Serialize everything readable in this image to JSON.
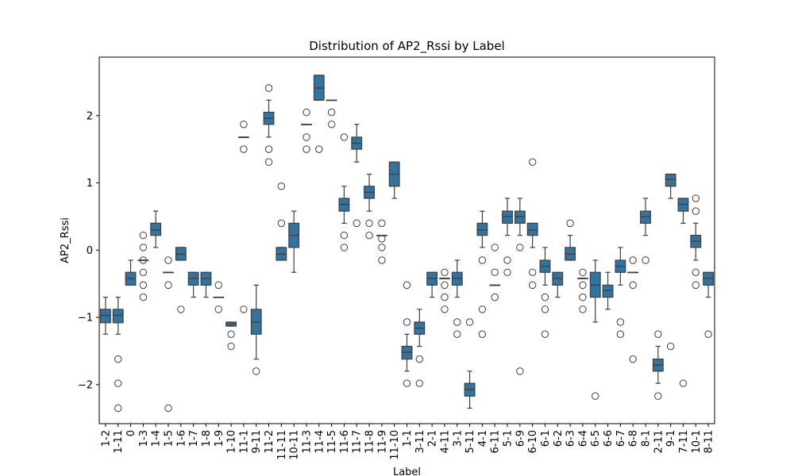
{
  "chart_data": {
    "type": "box",
    "title": "Distribution of AP2_Rssi by Label",
    "xlabel": "Label",
    "ylabel": "AP2_Rssi",
    "ylim": [
      -2.58,
      2.87
    ],
    "yticks": [
      -2,
      -1,
      0,
      1,
      2
    ],
    "box_color": "#3274a1",
    "edge_color": "#3f3f3f",
    "grid": false,
    "categories": [
      "1-2",
      "1-11",
      "0",
      "1-3",
      "1-4",
      "1-5",
      "1-6",
      "1-7",
      "1-8",
      "1-9",
      "1-10",
      "11-1",
      "9-11",
      "11-2",
      "11-11",
      "10-11",
      "11-3",
      "11-4",
      "11-5",
      "11-6",
      "11-7",
      "11-8",
      "11-9",
      "11-10",
      "1-1",
      "3-11",
      "2-1",
      "4-11",
      "3-1",
      "5-11",
      "4-1",
      "6-11",
      "5-1",
      "6-9",
      "6-10",
      "6-1",
      "6-2",
      "6-3",
      "6-4",
      "6-5",
      "6-6",
      "6-7",
      "6-8",
      "8-1",
      "2-11",
      "9-1",
      "7-11",
      "10-1",
      "8-11"
    ],
    "boxes": [
      {
        "label": "1-2",
        "whislo": -1.25,
        "q1": -1.08,
        "med": -0.97,
        "q3": -0.88,
        "whishi": -0.7,
        "fliers": []
      },
      {
        "label": "1-11",
        "whislo": -1.25,
        "q1": -1.08,
        "med": -0.97,
        "q3": -0.88,
        "whishi": -0.7,
        "fliers": [
          -1.62,
          -1.98,
          -2.35
        ]
      },
      {
        "label": "0",
        "whislo": -0.52,
        "q1": -0.52,
        "med": -0.42,
        "q3": -0.33,
        "whishi": -0.15,
        "fliers": []
      },
      {
        "label": "1-3",
        "whislo": -0.15,
        "q1": -0.15,
        "med": -0.15,
        "q3": -0.15,
        "whishi": -0.15,
        "fliers": [
          0.22,
          0.04,
          -0.15,
          -0.33,
          -0.52,
          -0.7
        ]
      },
      {
        "label": "1-4",
        "whislo": 0.04,
        "q1": 0.22,
        "med": 0.3,
        "q3": 0.4,
        "whishi": 0.58,
        "fliers": []
      },
      {
        "label": "1-5",
        "whislo": -0.33,
        "q1": -0.33,
        "med": -0.33,
        "q3": -0.33,
        "whishi": -0.33,
        "fliers": [
          -0.15,
          -0.52,
          -2.35
        ]
      },
      {
        "label": "1-6",
        "whislo": -0.15,
        "q1": -0.15,
        "med": -0.06,
        "q3": 0.04,
        "whishi": 0.04,
        "fliers": [
          -0.88
        ]
      },
      {
        "label": "1-7",
        "whislo": -0.7,
        "q1": -0.52,
        "med": -0.42,
        "q3": -0.33,
        "whishi": -0.33,
        "fliers": []
      },
      {
        "label": "1-8",
        "whislo": -0.7,
        "q1": -0.52,
        "med": -0.42,
        "q3": -0.33,
        "whishi": -0.33,
        "fliers": []
      },
      {
        "label": "1-9",
        "whislo": -0.7,
        "q1": -0.7,
        "med": -0.7,
        "q3": -0.7,
        "whishi": -0.7,
        "fliers": [
          -0.52,
          -0.88
        ]
      },
      {
        "label": "1-10",
        "whislo": -1.13,
        "q1": -1.13,
        "med": -1.1,
        "q3": -1.07,
        "whishi": -1.07,
        "fliers": [
          -1.25,
          -1.43
        ]
      },
      {
        "label": "11-1",
        "whislo": 1.68,
        "q1": 1.68,
        "med": 1.68,
        "q3": 1.68,
        "whishi": 1.68,
        "fliers": [
          1.87,
          1.5,
          -0.88
        ]
      },
      {
        "label": "9-11",
        "whislo": -1.62,
        "q1": -1.25,
        "med": -1.07,
        "q3": -0.88,
        "whishi": -0.52,
        "fliers": [
          -1.8
        ]
      },
      {
        "label": "11-2",
        "whislo": 1.68,
        "q1": 1.87,
        "med": 1.96,
        "q3": 2.05,
        "whishi": 2.23,
        "fliers": [
          2.41,
          1.5,
          1.31
        ]
      },
      {
        "label": "11-11",
        "whislo": -0.15,
        "q1": -0.15,
        "med": -0.06,
        "q3": 0.04,
        "whishi": 0.04,
        "fliers": [
          0.95,
          0.4
        ]
      },
      {
        "label": "10-11",
        "whislo": -0.33,
        "q1": 0.04,
        "med": 0.22,
        "q3": 0.4,
        "whishi": 0.58,
        "fliers": []
      },
      {
        "label": "11-3",
        "whislo": 1.87,
        "q1": 1.87,
        "med": 1.87,
        "q3": 1.87,
        "whishi": 1.87,
        "fliers": [
          2.05,
          1.68,
          1.5
        ]
      },
      {
        "label": "11-4",
        "whislo": 2.23,
        "q1": 2.23,
        "med": 2.41,
        "q3": 2.6,
        "whishi": 2.6,
        "fliers": [
          1.5
        ]
      },
      {
        "label": "11-5",
        "whislo": 2.23,
        "q1": 2.23,
        "med": 2.23,
        "q3": 2.23,
        "whishi": 2.23,
        "fliers": [
          2.05,
          1.87
        ]
      },
      {
        "label": "11-6",
        "whislo": 0.4,
        "q1": 0.58,
        "med": 0.68,
        "q3": 0.77,
        "whishi": 0.95,
        "fliers": [
          1.68,
          0.22,
          0.04
        ]
      },
      {
        "label": "11-7",
        "whislo": 1.31,
        "q1": 1.5,
        "med": 1.59,
        "q3": 1.68,
        "whishi": 1.87,
        "fliers": [
          0.4
        ]
      },
      {
        "label": "11-8",
        "whislo": 0.58,
        "q1": 0.77,
        "med": 0.86,
        "q3": 0.95,
        "whishi": 1.13,
        "fliers": [
          0.4,
          0.22
        ]
      },
      {
        "label": "11-9",
        "whislo": 0.22,
        "q1": 0.22,
        "med": 0.22,
        "q3": 0.22,
        "whishi": 0.22,
        "fliers": [
          0.4,
          0.17,
          0.04,
          -0.15
        ]
      },
      {
        "label": "11-10",
        "whislo": 0.77,
        "q1": 0.95,
        "med": 1.13,
        "q3": 1.31,
        "whishi": 1.31,
        "fliers": []
      },
      {
        "label": "1-1",
        "whislo": -1.8,
        "q1": -1.62,
        "med": -1.52,
        "q3": -1.43,
        "whishi": -1.25,
        "fliers": [
          -0.52,
          -1.07,
          -1.98
        ]
      },
      {
        "label": "3-11",
        "whislo": -1.43,
        "q1": -1.25,
        "med": -1.16,
        "q3": -1.07,
        "whishi": -0.88,
        "fliers": [
          -1.62,
          -1.98
        ]
      },
      {
        "label": "2-1",
        "whislo": -0.7,
        "q1": -0.52,
        "med": -0.42,
        "q3": -0.33,
        "whishi": -0.33,
        "fliers": []
      },
      {
        "label": "4-11",
        "whislo": -0.42,
        "q1": -0.42,
        "med": -0.42,
        "q3": -0.42,
        "whishi": -0.42,
        "fliers": [
          -0.33,
          -0.52,
          -0.7,
          -0.88
        ]
      },
      {
        "label": "3-1",
        "whislo": -0.7,
        "q1": -0.52,
        "med": -0.42,
        "q3": -0.33,
        "whishi": -0.15,
        "fliers": [
          -1.07,
          -1.25
        ]
      },
      {
        "label": "5-11",
        "whislo": -2.35,
        "q1": -2.17,
        "med": -2.07,
        "q3": -1.98,
        "whishi": -1.8,
        "fliers": [
          -1.07
        ]
      },
      {
        "label": "4-1",
        "whislo": 0.04,
        "q1": 0.22,
        "med": 0.3,
        "q3": 0.4,
        "whishi": 0.58,
        "fliers": [
          -0.15,
          -0.88,
          -1.25
        ]
      },
      {
        "label": "6-11",
        "whislo": -0.52,
        "q1": -0.52,
        "med": -0.52,
        "q3": -0.52,
        "whishi": -0.52,
        "fliers": [
          0.04,
          -0.33,
          -0.7
        ]
      },
      {
        "label": "5-1",
        "whislo": 0.22,
        "q1": 0.4,
        "med": 0.5,
        "q3": 0.58,
        "whishi": 0.77,
        "fliers": [
          -0.15,
          -0.33
        ]
      },
      {
        "label": "6-9",
        "whislo": 0.22,
        "q1": 0.4,
        "med": 0.5,
        "q3": 0.58,
        "whishi": 0.77,
        "fliers": [
          0.04,
          -1.8
        ]
      },
      {
        "label": "6-10",
        "whislo": 0.04,
        "q1": 0.22,
        "med": 0.3,
        "q3": 0.4,
        "whishi": 0.4,
        "fliers": [
          1.31,
          -0.33,
          -0.52
        ]
      },
      {
        "label": "6-1",
        "whislo": -0.52,
        "q1": -0.33,
        "med": -0.24,
        "q3": -0.15,
        "whishi": 0.04,
        "fliers": [
          -0.7,
          -0.88,
          -1.25
        ]
      },
      {
        "label": "6-2",
        "whislo": -0.7,
        "q1": -0.52,
        "med": -0.42,
        "q3": -0.33,
        "whishi": -0.33,
        "fliers": []
      },
      {
        "label": "6-3",
        "whislo": -0.15,
        "q1": -0.15,
        "med": -0.06,
        "q3": 0.04,
        "whishi": 0.22,
        "fliers": [
          0.4
        ]
      },
      {
        "label": "6-4",
        "whislo": -0.42,
        "q1": -0.42,
        "med": -0.42,
        "q3": -0.42,
        "whishi": -0.42,
        "fliers": [
          -0.33,
          -0.52,
          -0.7,
          -0.88
        ]
      },
      {
        "label": "6-5",
        "whislo": -1.07,
        "q1": -0.7,
        "med": -0.52,
        "q3": -0.33,
        "whishi": -0.15,
        "fliers": [
          -2.17
        ]
      },
      {
        "label": "6-6",
        "whislo": -0.88,
        "q1": -0.7,
        "med": -0.6,
        "q3": -0.52,
        "whishi": -0.33,
        "fliers": []
      },
      {
        "label": "6-7",
        "whislo": -0.52,
        "q1": -0.33,
        "med": -0.24,
        "q3": -0.15,
        "whishi": 0.04,
        "fliers": [
          -1.07,
          -1.25
        ]
      },
      {
        "label": "6-8",
        "whislo": -0.33,
        "q1": -0.33,
        "med": -0.33,
        "q3": -0.33,
        "whishi": -0.33,
        "fliers": [
          -0.15,
          -0.52,
          -1.62
        ]
      },
      {
        "label": "8-1",
        "whislo": 0.22,
        "q1": 0.4,
        "med": 0.5,
        "q3": 0.58,
        "whishi": 0.77,
        "fliers": [
          -0.15
        ]
      },
      {
        "label": "2-11",
        "whislo": -1.98,
        "q1": -1.8,
        "med": -1.71,
        "q3": -1.62,
        "whishi": -1.43,
        "fliers": [
          -1.25,
          -2.17
        ]
      },
      {
        "label": "9-1",
        "whislo": 0.77,
        "q1": 0.95,
        "med": 1.05,
        "q3": 1.13,
        "whishi": 1.13,
        "fliers": [
          -1.43
        ]
      },
      {
        "label": "7-11",
        "whislo": 0.4,
        "q1": 0.58,
        "med": 0.68,
        "q3": 0.77,
        "whishi": 0.77,
        "fliers": [
          -1.98
        ]
      },
      {
        "label": "10-1",
        "whislo": -0.15,
        "q1": 0.04,
        "med": 0.13,
        "q3": 0.22,
        "whishi": 0.4,
        "fliers": [
          0.77,
          0.58,
          -0.33,
          -0.52
        ]
      },
      {
        "label": "8-11",
        "whislo": -0.7,
        "q1": -0.52,
        "med": -0.42,
        "q3": -0.33,
        "whishi": -0.33,
        "fliers": [
          -1.25
        ]
      }
    ]
  }
}
